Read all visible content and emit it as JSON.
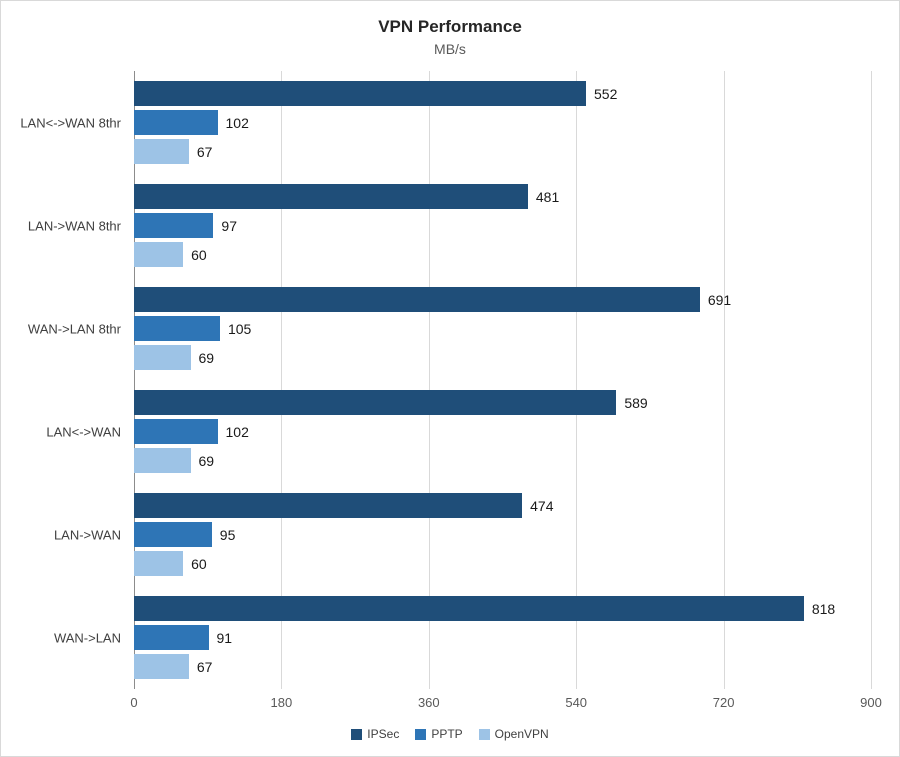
{
  "chart_data": {
    "type": "bar",
    "orientation": "horizontal",
    "title": "VPN Performance",
    "subtitle": "MB/s",
    "categories": [
      "LAN<->WAN 8thr",
      "LAN->WAN 8thr",
      "WAN->LAN 8thr",
      "LAN<->WAN",
      "LAN->WAN",
      "WAN->LAN"
    ],
    "series": [
      {
        "name": "IPSec",
        "color": "#1F4E79",
        "values": [
          552,
          481,
          691,
          589,
          474,
          818
        ]
      },
      {
        "name": "PPTP",
        "color": "#2E75B6",
        "values": [
          102,
          97,
          105,
          102,
          95,
          91
        ]
      },
      {
        "name": "OpenVPN",
        "color": "#9DC3E6",
        "values": [
          67,
          60,
          69,
          69,
          60,
          67
        ]
      }
    ],
    "xlabel": "",
    "ylabel": "",
    "xlim": [
      0,
      900
    ],
    "x_ticks": [
      0,
      180,
      360,
      540,
      720,
      900
    ],
    "grid": "vertical",
    "legend_position": "bottom"
  }
}
